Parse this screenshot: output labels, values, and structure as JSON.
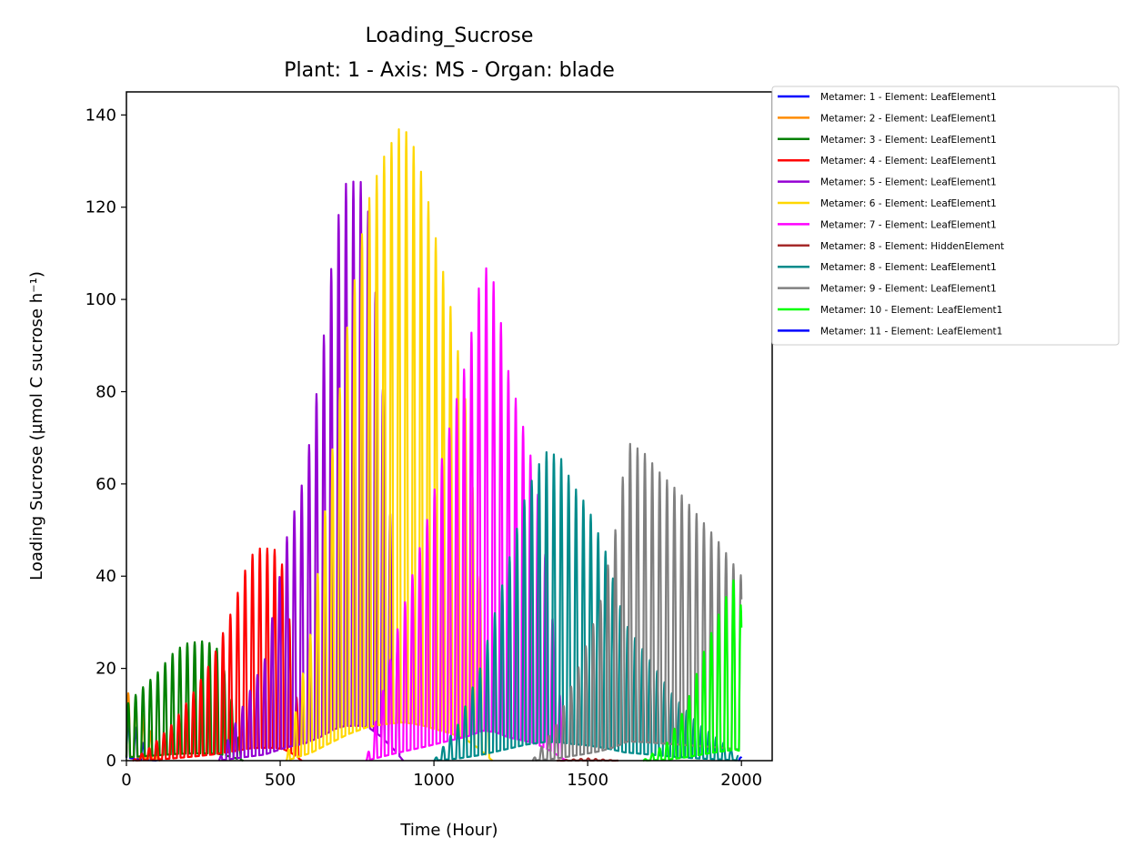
{
  "chart_data": {
    "type": "line",
    "title": "Loading_Sucrose",
    "subtitle": "Plant: 1 - Axis: MS - Organ: blade",
    "xlabel": "Time (Hour)",
    "ylabel": "Loading Sucrose (µmol C sucrose h⁻¹)",
    "xlim": [
      0,
      2100
    ],
    "ylim": [
      0,
      145
    ],
    "xticks": [
      0,
      500,
      1000,
      1500,
      2000
    ],
    "yticks": [
      0,
      20,
      40,
      60,
      80,
      100,
      120,
      140
    ],
    "grid": false,
    "legend_placement": "outside-upper-right",
    "period_hours": 24,
    "series": [
      {
        "name": "Metamer: 1 - Element: LeafElement1",
        "color": "#0000ff",
        "envelope": [
          [
            0,
            10
          ],
          [
            24,
            8
          ],
          [
            60,
            3
          ],
          [
            100,
            0
          ]
        ]
      },
      {
        "name": "Metamer: 2 - Element: LeafElement1",
        "color": "#ff8c00",
        "envelope": [
          [
            0,
            15
          ],
          [
            30,
            13
          ],
          [
            70,
            8
          ],
          [
            110,
            0
          ]
        ]
      },
      {
        "name": "Metamer: 3 - Element: LeafElement1",
        "color": "#008000",
        "envelope": [
          [
            0,
            12
          ],
          [
            40,
            15
          ],
          [
            100,
            19
          ],
          [
            160,
            24
          ],
          [
            200,
            25.5
          ],
          [
            260,
            26
          ],
          [
            300,
            24
          ],
          [
            340,
            14
          ],
          [
            380,
            0
          ]
        ]
      },
      {
        "name": "Metamer: 4 - Element: LeafElement1",
        "color": "#ff0000",
        "envelope": [
          [
            20,
            0
          ],
          [
            80,
            3
          ],
          [
            150,
            8
          ],
          [
            220,
            15
          ],
          [
            280,
            22
          ],
          [
            340,
            32
          ],
          [
            400,
            44
          ],
          [
            430,
            46
          ],
          [
            480,
            46
          ],
          [
            510,
            42
          ],
          [
            540,
            25
          ],
          [
            570,
            0
          ]
        ]
      },
      {
        "name": "Metamer: 5 - Element: LeafElement1",
        "color": "#9400d3",
        "envelope": [
          [
            300,
            0
          ],
          [
            380,
            12
          ],
          [
            450,
            22
          ],
          [
            520,
            48
          ],
          [
            580,
            62
          ],
          [
            630,
            85
          ],
          [
            680,
            115
          ],
          [
            710,
            125
          ],
          [
            760,
            126
          ],
          [
            790,
            118
          ],
          [
            830,
            85
          ],
          [
            870,
            40
          ],
          [
            900,
            0
          ]
        ]
      },
      {
        "name": "Metamer: 6 - Element: LeafElement1",
        "color": "#ffd700",
        "envelope": [
          [
            520,
            0
          ],
          [
            600,
            28
          ],
          [
            660,
            62
          ],
          [
            720,
            95
          ],
          [
            780,
            120
          ],
          [
            830,
            130
          ],
          [
            895,
            138
          ],
          [
            930,
            134
          ],
          [
            970,
            125
          ],
          [
            1010,
            112
          ],
          [
            1050,
            100
          ],
          [
            1100,
            80
          ],
          [
            1150,
            40
          ],
          [
            1190,
            0
          ]
        ]
      },
      {
        "name": "Metamer: 7 - Element: LeafElement1",
        "color": "#ff00ff",
        "envelope": [
          [
            780,
            0
          ],
          [
            880,
            28
          ],
          [
            970,
            50
          ],
          [
            1050,
            72
          ],
          [
            1110,
            88
          ],
          [
            1160,
            108
          ],
          [
            1200,
            103
          ],
          [
            1240,
            85
          ],
          [
            1280,
            75
          ],
          [
            1330,
            62
          ],
          [
            1380,
            35
          ],
          [
            1430,
            0
          ]
        ]
      },
      {
        "name": "Metamer: 8 - Element: HiddenElement",
        "color": "#a52a2a",
        "envelope": [
          [
            1400,
            0
          ],
          [
            1500,
            0.5
          ],
          [
            1600,
            0
          ]
        ]
      },
      {
        "name": "Metamer: 8 - Element: LeafElement1",
        "color": "#008b8b",
        "envelope": [
          [
            1000,
            0
          ],
          [
            1080,
            8
          ],
          [
            1150,
            20
          ],
          [
            1230,
            40
          ],
          [
            1300,
            58
          ],
          [
            1360,
            67
          ],
          [
            1410,
            66
          ],
          [
            1450,
            60
          ],
          [
            1500,
            55
          ],
          [
            1560,
            45
          ],
          [
            1620,
            30
          ],
          [
            1700,
            22
          ],
          [
            1780,
            14
          ],
          [
            1860,
            8
          ],
          [
            1940,
            4
          ],
          [
            1990,
            1
          ]
        ]
      },
      {
        "name": "Metamer: 9 - Element: LeafElement1",
        "color": "#808080",
        "envelope": [
          [
            1320,
            0
          ],
          [
            1400,
            8
          ],
          [
            1480,
            22
          ],
          [
            1540,
            34
          ],
          [
            1590,
            50
          ],
          [
            1630,
            69
          ],
          [
            1680,
            67
          ],
          [
            1740,
            62
          ],
          [
            1800,
            58
          ],
          [
            1860,
            53
          ],
          [
            1920,
            48
          ],
          [
            1980,
            42
          ],
          [
            2000,
            40
          ]
        ]
      },
      {
        "name": "Metamer: 10 - Element: LeafElement1",
        "color": "#00ff00",
        "envelope": [
          [
            1680,
            0
          ],
          [
            1760,
            4
          ],
          [
            1820,
            12
          ],
          [
            1880,
            24
          ],
          [
            1940,
            34
          ],
          [
            1980,
            40
          ],
          [
            2000,
            33
          ]
        ]
      },
      {
        "name": "Metamer: 11 - Element: LeafElement1",
        "color": "#0000ff",
        "envelope": [
          [
            1990,
            0
          ],
          [
            2000,
            1
          ]
        ]
      }
    ]
  }
}
